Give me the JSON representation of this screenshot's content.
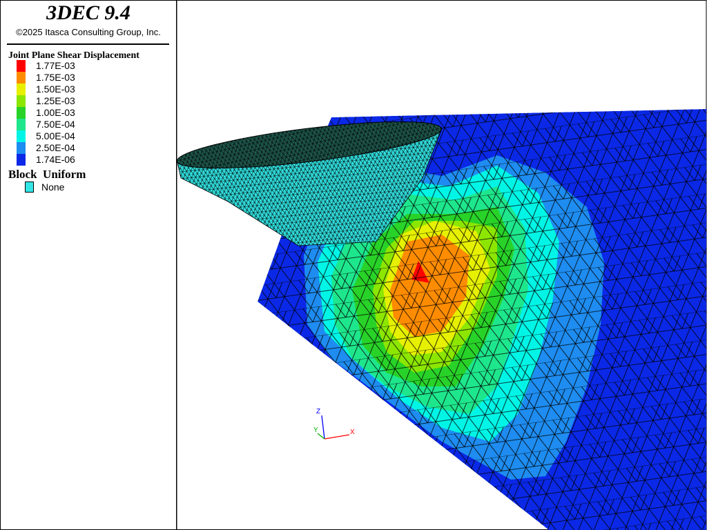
{
  "header": {
    "title": "3DEC 9.4",
    "copyright": "©2025 Itasca Consulting Group, Inc."
  },
  "legend": {
    "title": "Joint Plane Shear Displacement",
    "entries": [
      {
        "label": "1.77E-03",
        "color": "#ff0000"
      },
      {
        "label": "1.75E-03",
        "color": "#ff8c00"
      },
      {
        "label": "1.50E-03",
        "color": "#e6f000"
      },
      {
        "label": "1.25E-03",
        "color": "#8ce600"
      },
      {
        "label": "1.00E-03",
        "color": "#28d228"
      },
      {
        "label": "7.50E-04",
        "color": "#1ee68c"
      },
      {
        "label": "5.00E-04",
        "color": "#00f5e6"
      },
      {
        "label": "2.50E-04",
        "color": "#1e8cf0"
      },
      {
        "label": "1.74E-06",
        "color": "#0a28e6"
      }
    ],
    "block": {
      "title": "Block  Uniform",
      "entries": [
        {
          "label": "None",
          "color": "#33e6e6"
        }
      ]
    }
  },
  "axes": {
    "z": {
      "label": "Z",
      "color": "#0000ff"
    },
    "y": {
      "label": "Y",
      "color": "#00b400"
    },
    "x": {
      "label": "X",
      "color": "#ff0000"
    }
  }
}
